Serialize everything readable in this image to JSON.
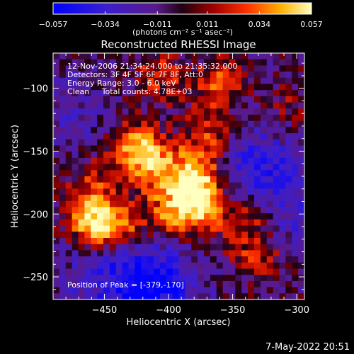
{
  "chart_data": {
    "type": "heatmap",
    "title": "Reconstructed RHESSI Image",
    "xlabel": "Heliocentric X (arcsec)",
    "ylabel": "Heliocentric Y (arcsec)",
    "xlim": [
      -490,
      -294
    ],
    "ylim": [
      -268,
      -72
    ],
    "x_ticks": [
      -450,
      -400,
      -350,
      -300
    ],
    "y_ticks": [
      -100,
      -150,
      -200,
      -250
    ],
    "x_tick_labels": [
      "−450",
      "−400",
      "−350",
      "−300"
    ],
    "y_tick_labels": [
      "−100",
      "−150",
      "−200",
      "−250"
    ],
    "colorbar": {
      "range": [
        -0.057,
        0.057
      ],
      "tick_labels": [
        "−0.057",
        "−0.034",
        "−0.011",
        "0.011",
        "0.034",
        "0.057"
      ],
      "units": "(photons cm⁻² s⁻¹ asec⁻²)"
    },
    "annotations": [
      "12-Nov-2006 21:34:24.000 to 21:35:32.000",
      "Detectors: 3F 4F 5F 6F 7F 8F, Att:0",
      "Energy Range: 3.0 - 6.0 keV",
      "Clean     Total counts: 4.78E+03"
    ],
    "peak_label": "Position of Peak = [-379,-170]",
    "peak_position": [
      -379,
      -170
    ],
    "grid_cells": 40,
    "bright_regions": [
      {
        "x": -425,
        "y": -145,
        "strength": 0.045
      },
      {
        "x": -410,
        "y": -165,
        "strength": 0.04
      },
      {
        "x": -379,
        "y": -170,
        "strength": 0.057
      },
      {
        "x": -378,
        "y": -195,
        "strength": 0.05
      },
      {
        "x": -460,
        "y": -205,
        "strength": 0.05
      },
      {
        "x": -440,
        "y": -210,
        "strength": 0.04
      },
      {
        "x": -400,
        "y": -200,
        "strength": 0.03
      },
      {
        "x": -340,
        "y": -205,
        "strength": 0.028
      },
      {
        "x": -330,
        "y": -235,
        "strength": 0.025
      },
      {
        "x": -360,
        "y": -95,
        "strength": 0.03
      },
      {
        "x": -405,
        "y": -90,
        "strength": 0.025
      },
      {
        "x": -460,
        "y": -175,
        "strength": 0.022
      },
      {
        "x": -370,
        "y": -135,
        "strength": 0.03
      },
      {
        "x": -310,
        "y": -115,
        "strength": 0.015
      }
    ],
    "dim_regions": [
      {
        "x": -410,
        "y": -255,
        "strength": -0.045
      },
      {
        "x": -450,
        "y": -250,
        "strength": -0.025
      },
      {
        "x": -330,
        "y": -160,
        "strength": -0.03
      },
      {
        "x": -300,
        "y": -200,
        "strength": -0.02
      },
      {
        "x": -480,
        "y": -120,
        "strength": -0.015
      }
    ]
  },
  "footer": {
    "date": "7-May-2022 20:51"
  }
}
